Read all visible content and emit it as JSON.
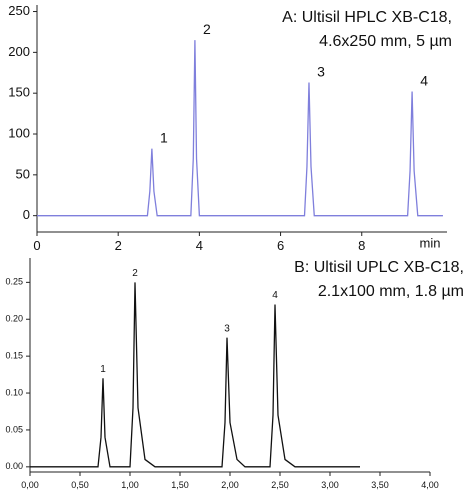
{
  "chart_data": [
    {
      "type": "line",
      "title": "A: Ultisil HPLC XB-C18,",
      "subtitle": "4.6x250 mm, 5 µm",
      "xlabel": "min",
      "x": [
        0,
        2.72,
        2.78,
        2.83,
        2.88,
        2.96,
        3.79,
        3.85,
        3.89,
        3.93,
        4.0,
        6.59,
        6.65,
        6.7,
        6.75,
        6.83,
        9.13,
        9.19,
        9.24,
        9.29,
        9.38,
        10.0
      ],
      "series": [
        {
          "name": "A",
          "color": "#7f7fdc",
          "values": [
            0,
            0,
            30,
            82,
            30,
            0,
            0,
            70,
            215,
            70,
            0,
            0,
            60,
            163,
            60,
            0,
            0,
            55,
            152,
            55,
            0,
            0
          ]
        }
      ],
      "peak_labels": [
        "1",
        "2",
        "3",
        "4"
      ],
      "xlim": [
        0,
        10.1
      ],
      "ylim": [
        -20,
        258
      ],
      "xticks": [
        0,
        2,
        4,
        6,
        8
      ],
      "yticks": [
        0,
        50,
        100,
        150,
        200,
        250
      ]
    },
    {
      "type": "line",
      "title": "B: Ultisil UPLC XB-C18,",
      "subtitle": "2.1x100 mm, 1.8 µm",
      "x": [
        0,
        0.68,
        0.71,
        0.73,
        0.75,
        0.8,
        1.0,
        1.03,
        1.05,
        1.08,
        1.15,
        1.25,
        1.92,
        1.95,
        1.97,
        2.0,
        2.07,
        2.15,
        2.4,
        2.43,
        2.45,
        2.48,
        2.55,
        2.65,
        3.3
      ],
      "series": [
        {
          "name": "B",
          "color": "#111111",
          "values": [
            0,
            0,
            0.04,
            0.12,
            0.04,
            0,
            0,
            0.08,
            0.25,
            0.08,
            0.01,
            0,
            0,
            0.06,
            0.175,
            0.06,
            0.01,
            0,
            0,
            0.07,
            0.22,
            0.07,
            0.01,
            0,
            0
          ]
        }
      ],
      "peak_labels": [
        "1",
        "2",
        "3",
        "4"
      ],
      "xlim": [
        0,
        4.0
      ],
      "ylim": [
        -0.007,
        0.283
      ],
      "xticks": [
        {
          "value": 0,
          "label": "0,00"
        },
        {
          "value": 0.5,
          "label": "0,50"
        },
        {
          "value": 1.0,
          "label": "1,00"
        },
        {
          "value": 1.5,
          "label": "1,50"
        },
        {
          "value": 2.0,
          "label": "2,00"
        },
        {
          "value": 2.5,
          "label": "2,50"
        },
        {
          "value": 3.0,
          "label": "3,00"
        },
        {
          "value": 3.5,
          "label": "3,50"
        },
        {
          "value": 4.0,
          "label": "4,00"
        }
      ],
      "yticks": [
        {
          "value": 0,
          "label": "0.00"
        },
        {
          "value": 0.05,
          "label": "0.05"
        },
        {
          "value": 0.1,
          "label": "0.10"
        },
        {
          "value": 0.15,
          "label": "0.15"
        },
        {
          "value": 0.2,
          "label": "0.20"
        },
        {
          "value": 0.25,
          "label": "0.25"
        }
      ]
    }
  ]
}
